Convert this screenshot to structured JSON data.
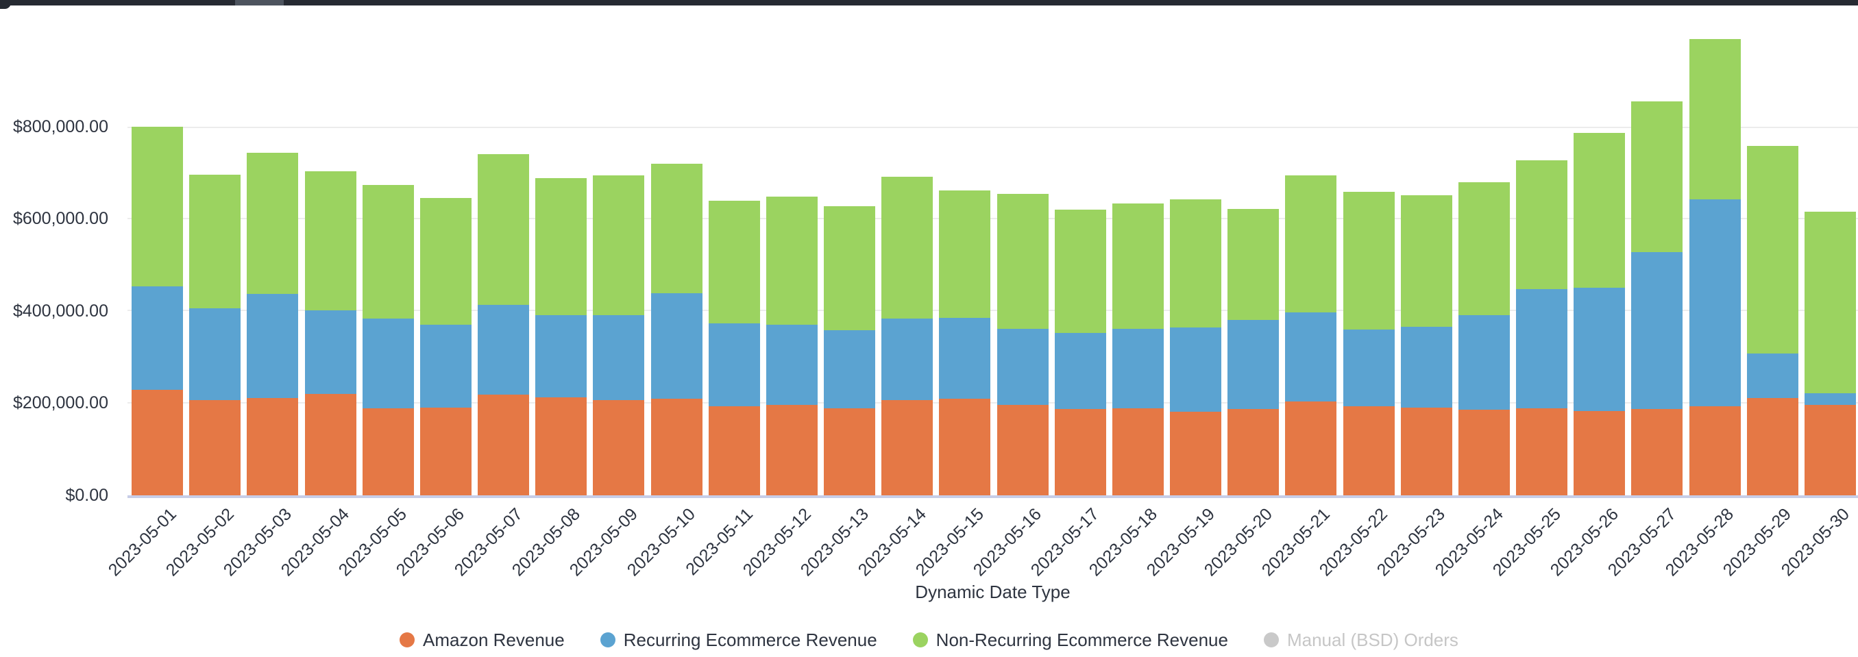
{
  "topbar": {
    "track_color": "#262A32",
    "thumb_color": "#4D545E"
  },
  "chart_data": {
    "type": "bar",
    "stacked": true,
    "title": "",
    "xlabel": "Dynamic Date Type",
    "ylabel": "",
    "ylim": [
      0,
      800000
    ],
    "grid": true,
    "legend_position": "bottom",
    "y_ticks": [
      "$800,000.00",
      "$600,000.00",
      "$400,000.00",
      "$200,000.00",
      "$0.00"
    ],
    "categories": [
      "2023-05-01",
      "2023-05-02",
      "2023-05-03",
      "2023-05-04",
      "2023-05-05",
      "2023-05-06",
      "2023-05-07",
      "2023-05-08",
      "2023-05-09",
      "2023-05-10",
      "2023-05-11",
      "2023-05-12",
      "2023-05-13",
      "2023-05-14",
      "2023-05-15",
      "2023-05-16",
      "2023-05-17",
      "2023-05-18",
      "2023-05-19",
      "2023-05-20",
      "2023-05-21",
      "2023-05-22",
      "2023-05-23",
      "2023-05-24",
      "2023-05-25",
      "2023-05-26",
      "2023-05-27",
      "2023-05-28",
      "2023-05-29",
      "2023-05-30"
    ],
    "series": [
      {
        "name": "Amazon Revenue",
        "color": "#E57845",
        "enabled": true,
        "values": [
          229000,
          207000,
          211000,
          220000,
          189000,
          191000,
          219000,
          212000,
          207000,
          209000,
          194000,
          197000,
          189000,
          207000,
          209000,
          196000,
          187000,
          189000,
          181000,
          187000,
          204000,
          193000,
          190000,
          186000,
          189000,
          183000,
          187000,
          193000,
          211000,
          196000
        ]
      },
      {
        "name": "Recurring Ecommerce Revenue",
        "color": "#5BA3D1",
        "enabled": true,
        "values": [
          224000,
          199000,
          226000,
          181000,
          194000,
          180000,
          194000,
          179000,
          184000,
          230000,
          179000,
          174000,
          169000,
          176000,
          176000,
          165000,
          166000,
          172000,
          184000,
          194000,
          193000,
          167000,
          176000,
          205000,
          258000,
          267000,
          341000,
          449000,
          97000,
          26000
        ]
      },
      {
        "name": "Non-Recurring Ecommerce Revenue",
        "color": "#9BD360",
        "enabled": true,
        "values": [
          347000,
          290000,
          307000,
          303000,
          290000,
          274000,
          328000,
          297000,
          303000,
          281000,
          266000,
          278000,
          269000,
          309000,
          277000,
          293000,
          267000,
          272000,
          278000,
          241000,
          297000,
          299000,
          285000,
          289000,
          280000,
          337000,
          327000,
          349000,
          451000,
          394000
        ]
      },
      {
        "name": "Manual (BSD) Orders",
        "color": "#C9C9C9",
        "enabled": false,
        "values": []
      }
    ],
    "text_color": "#2E3440",
    "gridline_color": "#ECECEC",
    "axis_line_color": "#C7CDE7",
    "disabled_text_color": "#C6C6C6"
  }
}
